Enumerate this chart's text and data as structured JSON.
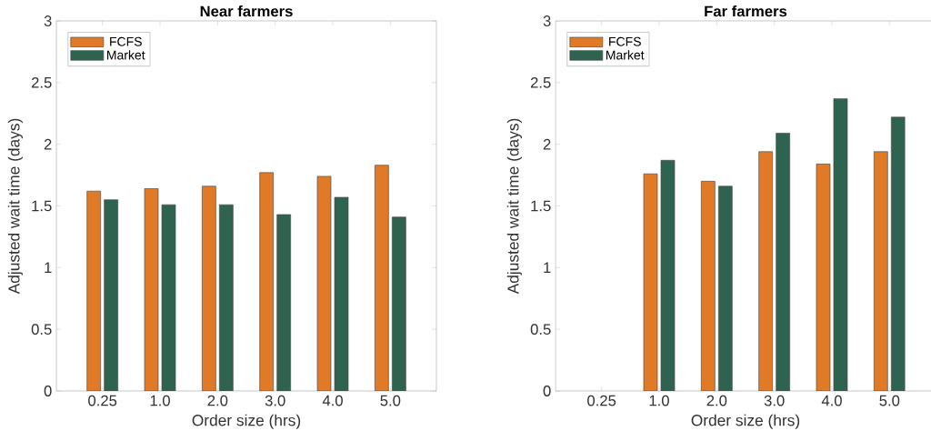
{
  "chart_data": [
    {
      "type": "bar",
      "title": "Near farmers",
      "xlabel": "Order size (hrs)",
      "ylabel": "Adjusted wait time (days)",
      "categories": [
        "0.25",
        "1.0",
        "2.0",
        "3.0",
        "4.0",
        "5.0"
      ],
      "series": [
        {
          "name": "FCFS",
          "color": "#e07a27",
          "values": [
            1.62,
            1.64,
            1.66,
            1.77,
            1.74,
            1.83
          ]
        },
        {
          "name": "Market",
          "color": "#2e6350",
          "values": [
            1.55,
            1.51,
            1.51,
            1.43,
            1.57,
            1.41
          ]
        }
      ],
      "ylim": [
        0,
        3
      ],
      "yticks": [
        0,
        0.5,
        1,
        1.5,
        2,
        2.5,
        3
      ],
      "legend": "top left"
    },
    {
      "type": "bar",
      "title": "Far farmers",
      "xlabel": "Order size (hrs)",
      "ylabel": "Adjusted wait time (days)",
      "categories": [
        "0.25",
        "1.0",
        "2.0",
        "3.0",
        "4.0",
        "5.0"
      ],
      "series": [
        {
          "name": "FCFS",
          "color": "#e07a27",
          "values": [
            null,
            1.76,
            1.7,
            1.94,
            1.84,
            1.94
          ]
        },
        {
          "name": "Market",
          "color": "#2e6350",
          "values": [
            null,
            1.87,
            1.66,
            2.09,
            2.37,
            2.22
          ]
        }
      ],
      "ylim": [
        0,
        3
      ],
      "yticks": [
        0,
        0.5,
        1,
        1.5,
        2,
        2.5,
        3
      ],
      "legend": "top left"
    }
  ]
}
